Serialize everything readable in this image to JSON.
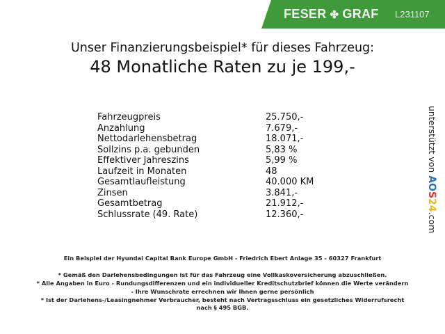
{
  "header": {
    "brand": "FESER",
    "brand2": "GRAF",
    "code": "L231107",
    "banner_color": "#3f9a3a",
    "logo_icon": "clover-icon"
  },
  "title": {
    "line1": "Unser Finanzierungsbeispiel* für dieses Fahrzeug:",
    "line2": "48 Monatliche Raten zu je 199,-"
  },
  "rows": [
    {
      "label": "Fahrzeugpreis",
      "value": "25.750,-"
    },
    {
      "label": "Anzahlung",
      "value": "7.679,-"
    },
    {
      "label": "Nettodarlehensbetrag",
      "value": "18.071,-"
    },
    {
      "label": "Sollzins p.a. gebunden",
      "value": "5,83 %"
    },
    {
      "label": "Effektiver Jahreszins",
      "value": "5,99 %"
    },
    {
      "label": "Laufzeit in Monaten",
      "value": "48"
    },
    {
      "label": "Gesamtlaufleistung",
      "value": "40.000 KM"
    },
    {
      "label": "Zinsen",
      "value": "3.841,-"
    },
    {
      "label": "Gesamtbetrag",
      "value": "21.912,-"
    },
    {
      "label": "Schlussrate (49. Rate)",
      "value": "12.360,-"
    }
  ],
  "side": {
    "text": "unterstützt von",
    "logo": "AOS24",
    "suffix": ".com"
  },
  "footer": {
    "bank": "Ein Beispiel der Hyundai Capital Bank Europe GmbH - Friedrich Ebert Anlage 35 - 60327 Frankfurt",
    "n1": "* Gemäß den Darlehensbedingungen ist für das Fahrzeug eine Vollkaskoversicherung abzuschließen.",
    "n2a": "* Alle Angaben in Euro - Rundungsdifferenzen und ein individueller Kreditschutzbrief können die Werte verändern",
    "n2b": "- Ihre Wunschrate errechnen wir Ihnen gerne persönlich",
    "n3a": "* Ist der Darlehens-/Leasingnehmer Verbraucher, besteht nach Vertragsschluss ein gesetzliches Widerrufsrecht",
    "n3b": "nach § 495 BGB."
  }
}
